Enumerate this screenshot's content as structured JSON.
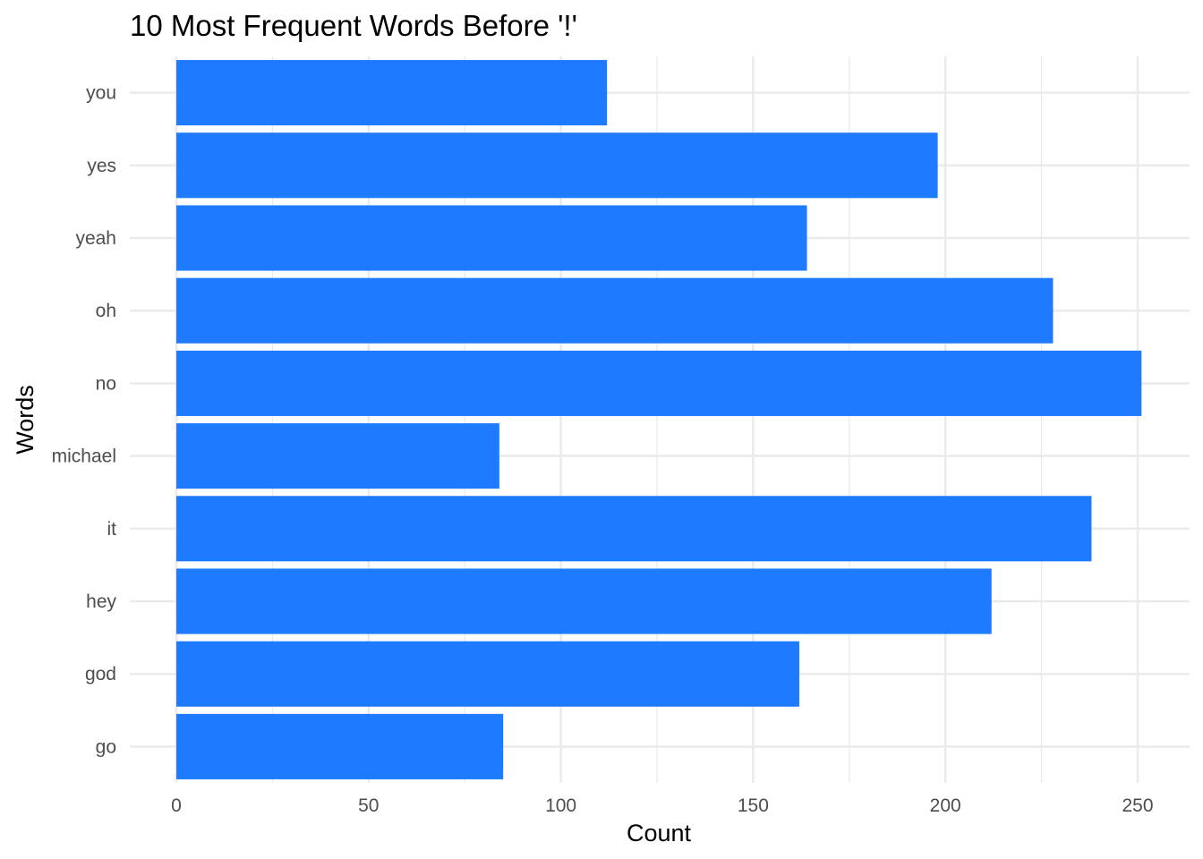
{
  "chart_data": {
    "type": "bar",
    "orientation": "horizontal",
    "title": "10 Most Frequent Words Before '!'",
    "xlabel": "Count",
    "ylabel": "Words",
    "categories": [
      "go",
      "god",
      "hey",
      "it",
      "michael",
      "no",
      "oh",
      "yeah",
      "yes",
      "you"
    ],
    "values": [
      85,
      162,
      212,
      238,
      84,
      251,
      228,
      164,
      198,
      112
    ],
    "xlim": [
      0,
      263
    ],
    "x_ticks": [
      0,
      50,
      100,
      150,
      200,
      250
    ],
    "x_tick_labels": [
      "0",
      "50",
      "100",
      "150",
      "200",
      "250"
    ],
    "grid": true,
    "legend": "none",
    "bar_color": "#1e7bff",
    "grid_color": "#ebebeb",
    "background": "#ffffff"
  }
}
